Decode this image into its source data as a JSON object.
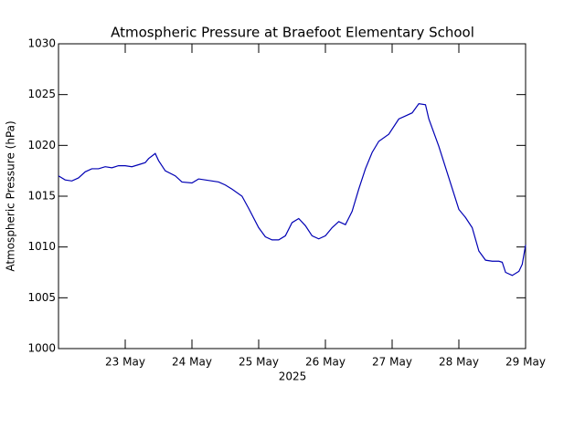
{
  "chart_data": {
    "type": "line",
    "title": "Atmospheric Pressure at Braefoot Elementary School",
    "y_label": "Atmospheric Pressure (hPa)",
    "x_label": "2025",
    "xlim": [
      22,
      29
    ],
    "xticks": [
      {
        "value": 23,
        "label": "23 May"
      },
      {
        "value": 24,
        "label": "24 May"
      },
      {
        "value": 25,
        "label": "25 May"
      },
      {
        "value": 26,
        "label": "26 May"
      },
      {
        "value": 27,
        "label": "27 May"
      },
      {
        "value": 28,
        "label": "28 May"
      },
      {
        "value": 29,
        "label": "29 May"
      }
    ],
    "ylim": [
      1000,
      1030
    ],
    "yticks": [
      1000,
      1005,
      1010,
      1015,
      1020,
      1025,
      1030
    ],
    "x": [
      22.0,
      22.1,
      22.2,
      22.3,
      22.4,
      22.5,
      22.6,
      22.7,
      22.8,
      22.9,
      23.0,
      23.1,
      23.2,
      23.3,
      23.35,
      23.45,
      23.5,
      23.6,
      23.75,
      23.85,
      24.0,
      24.1,
      24.3,
      24.4,
      24.5,
      24.6,
      24.75,
      24.85,
      25.0,
      25.1,
      25.2,
      25.3,
      25.4,
      25.5,
      25.6,
      25.7,
      25.8,
      25.9,
      26.0,
      26.1,
      26.2,
      26.3,
      26.4,
      26.5,
      26.6,
      26.7,
      26.8,
      26.95,
      27.1,
      27.2,
      27.3,
      27.4,
      27.5,
      27.55,
      27.7,
      27.85,
      28.0,
      28.1,
      28.2,
      28.3,
      28.4,
      28.5,
      28.6,
      28.65,
      28.7,
      28.8,
      28.9,
      28.95,
      29.0
    ],
    "series": [
      {
        "color": "#0000b4",
        "values": [
          1017.0,
          1016.6,
          1016.5,
          1016.8,
          1017.4,
          1017.7,
          1017.7,
          1017.9,
          1017.8,
          1018.0,
          1018.0,
          1017.9,
          1018.1,
          1018.3,
          1018.7,
          1019.2,
          1018.5,
          1017.5,
          1017.0,
          1016.4,
          1016.3,
          1016.7,
          1016.5,
          1016.4,
          1016.1,
          1015.7,
          1015.0,
          1013.8,
          1011.9,
          1011.0,
          1010.7,
          1010.7,
          1011.1,
          1012.4,
          1012.8,
          1012.1,
          1011.1,
          1010.8,
          1011.1,
          1011.9,
          1012.5,
          1012.2,
          1013.5,
          1015.7,
          1017.7,
          1019.3,
          1020.4,
          1021.1,
          1022.6,
          1022.9,
          1023.2,
          1024.1,
          1024.0,
          1022.6,
          1019.9,
          1016.8,
          1013.7,
          1012.9,
          1011.9,
          1009.6,
          1008.7,
          1008.6,
          1008.6,
          1008.5,
          1007.5,
          1007.2,
          1007.6,
          1008.3,
          1010.2
        ]
      }
    ]
  }
}
